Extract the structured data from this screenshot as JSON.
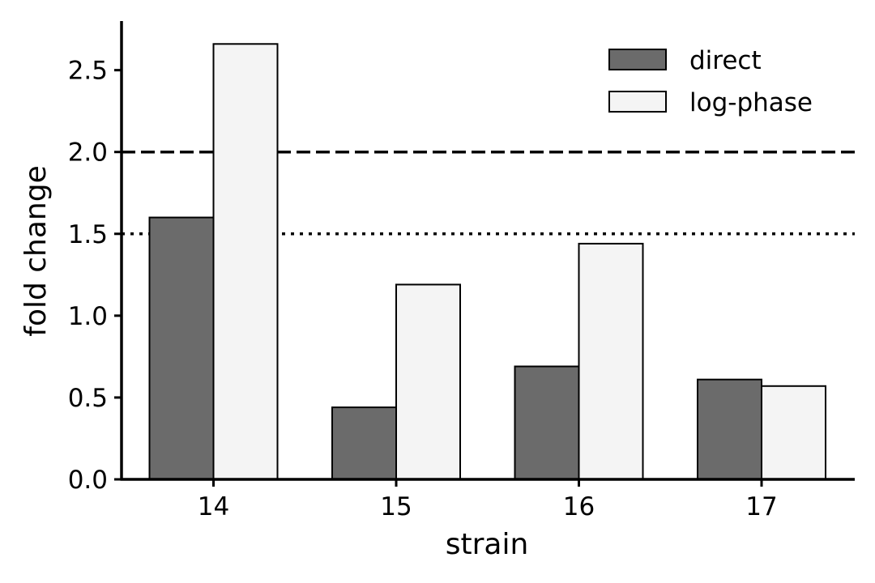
{
  "chart_data": {
    "type": "bar",
    "xlabel": "strain",
    "ylabel": "fold change",
    "categories": [
      "14",
      "15",
      "16",
      "17"
    ],
    "series": [
      {
        "name": "direct",
        "values": [
          1.6,
          0.44,
          0.69,
          0.61
        ],
        "color": "#6b6b6b"
      },
      {
        "name": "log-phase",
        "values": [
          2.66,
          1.19,
          1.44,
          0.57
        ],
        "color": "#f4f4f4"
      }
    ],
    "ylim": [
      0,
      2.8
    ],
    "yticks": [
      "0.0",
      "0.5",
      "1.0",
      "1.5",
      "2.0",
      "2.5"
    ],
    "reference_lines": [
      {
        "y": 2.0,
        "style": "dashed"
      },
      {
        "y": 1.5,
        "style": "dotted"
      }
    ],
    "legend_position": "top-right",
    "grid": false
  }
}
